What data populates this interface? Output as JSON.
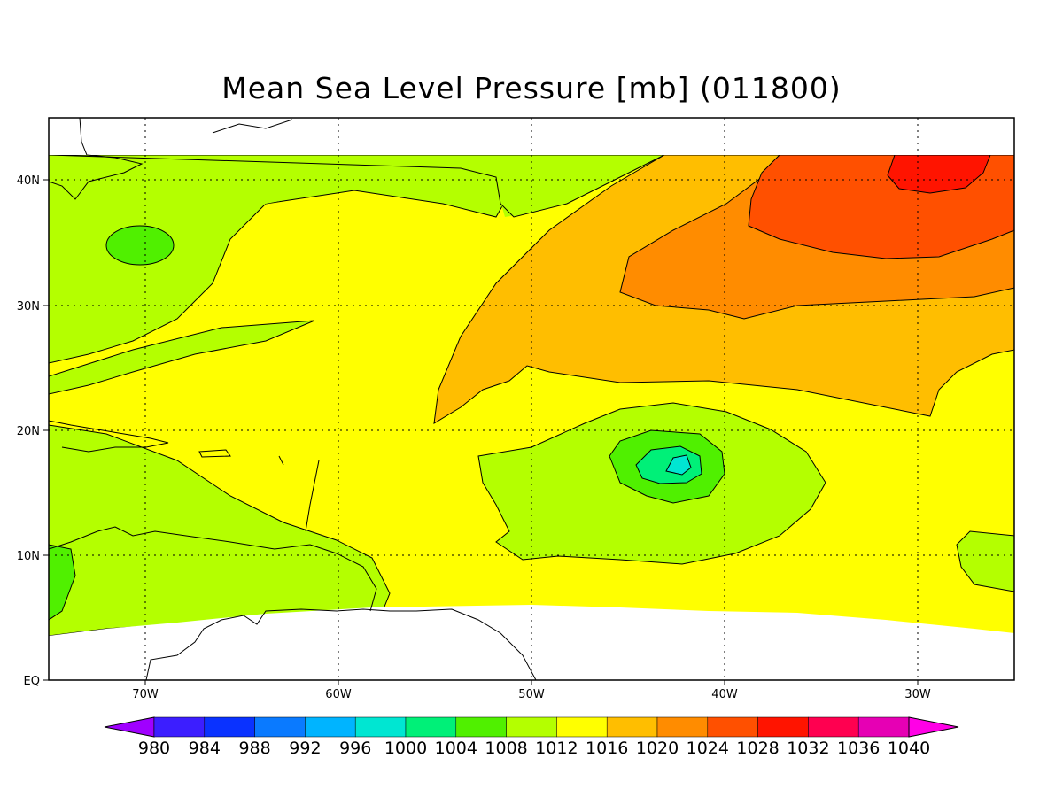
{
  "title": "Mean Sea Level Pressure [mb] (011800)",
  "map": {
    "x_ticks": [
      "70W",
      "60W",
      "50W",
      "40W",
      "30W"
    ],
    "y_ticks": [
      "EQ",
      "10N",
      "20N",
      "30N",
      "40N"
    ],
    "grid": true
  },
  "legend": {
    "values": [
      "980",
      "984",
      "988",
      "992",
      "996",
      "1000",
      "1004",
      "1008",
      "1012",
      "1016",
      "1020",
      "1024",
      "1028",
      "1032",
      "1036",
      "1040"
    ],
    "colors": [
      "#a000ff",
      "#3c1eff",
      "#0a32ff",
      "#0a7aff",
      "#00b4ff",
      "#00e6d2",
      "#00f078",
      "#50f000",
      "#b4ff00",
      "#ffff00",
      "#ffbe00",
      "#ff8c00",
      "#ff5000",
      "#ff1400",
      "#ff0050",
      "#e600b4",
      "#ff00e6"
    ]
  }
}
